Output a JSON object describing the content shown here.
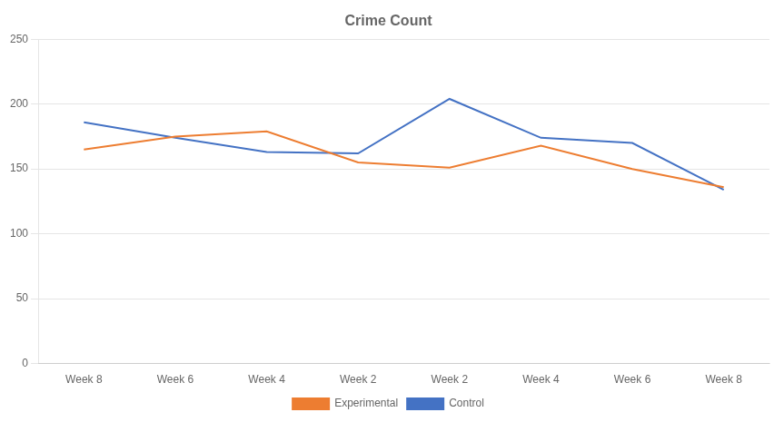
{
  "chart_data": {
    "type": "line",
    "title": "Crime Count",
    "categories": [
      "Week 8",
      "Week 6",
      "Week 4",
      "Week 2",
      "Week 2",
      "Week 4",
      "Week 6",
      "Week 8"
    ],
    "series": [
      {
        "name": "Experimental",
        "color": "#ED7D31",
        "values": [
          165,
          175,
          179,
          155,
          151,
          168,
          150,
          136
        ]
      },
      {
        "name": "Control",
        "color": "#4472C4",
        "values": [
          186,
          174,
          163,
          162,
          204,
          174,
          170,
          134
        ]
      }
    ],
    "ylim": [
      0,
      250
    ],
    "yticks": [
      0,
      50,
      100,
      150,
      200,
      250
    ],
    "grid": true,
    "legend": "bottom"
  }
}
